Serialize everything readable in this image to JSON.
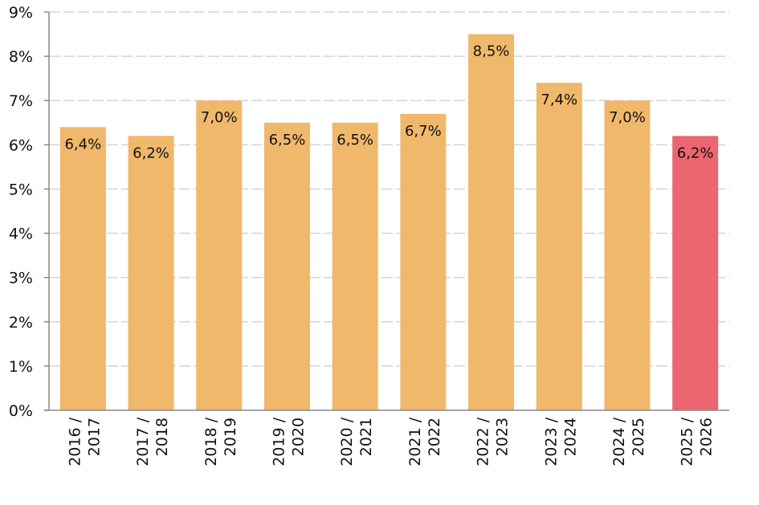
{
  "chart_data": {
    "type": "bar",
    "categories": [
      "2016 / 2017",
      "2017 / 2018",
      "2018 / 2019",
      "2019 / 2020",
      "2020 / 2021",
      "2021 / 2022",
      "2022 / 2023",
      "2023 / 2024",
      "2024 / 2025",
      "2025 / 2026"
    ],
    "values": [
      6.4,
      6.2,
      7.0,
      6.5,
      6.5,
      6.7,
      8.5,
      7.4,
      7.0,
      6.2
    ],
    "data_labels": [
      "6,4%",
      "6,2%",
      "7,0%",
      "6,5%",
      "6,5%",
      "6,7%",
      "8,5%",
      "7,4%",
      "7,0%",
      "6,2%"
    ],
    "title": "",
    "xlabel": "",
    "ylabel": "",
    "ylim": [
      0,
      9
    ],
    "yticks": [
      "0%",
      "1%",
      "2%",
      "3%",
      "4%",
      "5%",
      "6%",
      "7%",
      "8%",
      "9%"
    ],
    "grid": true,
    "colors": {
      "default": "#F0B86A",
      "highlight": "#EC6670",
      "highlight_index": 9
    }
  }
}
